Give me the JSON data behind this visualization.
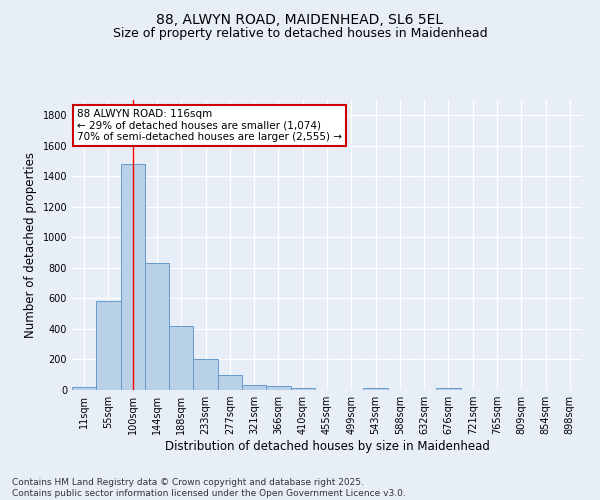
{
  "title": "88, ALWYN ROAD, MAIDENHEAD, SL6 5EL",
  "subtitle": "Size of property relative to detached houses in Maidenhead",
  "xlabel": "Distribution of detached houses by size in Maidenhead",
  "ylabel": "Number of detached properties",
  "bar_labels": [
    "11sqm",
    "55sqm",
    "100sqm",
    "144sqm",
    "188sqm",
    "233sqm",
    "277sqm",
    "321sqm",
    "366sqm",
    "410sqm",
    "455sqm",
    "499sqm",
    "543sqm",
    "588sqm",
    "632sqm",
    "676sqm",
    "721sqm",
    "765sqm",
    "809sqm",
    "854sqm",
    "898sqm"
  ],
  "bar_values": [
    20,
    580,
    1480,
    830,
    420,
    200,
    100,
    35,
    25,
    15,
    0,
    0,
    15,
    0,
    0,
    15,
    0,
    0,
    0,
    0,
    0
  ],
  "bar_color": "#b8d0e8",
  "bar_edge_color": "#6699cc",
  "red_line_x": 2,
  "annotation_line1": "88 ALWYN ROAD: 116sqm",
  "annotation_line2": "← 29% of detached houses are smaller (1,074)",
  "annotation_line3": "70% of semi-detached houses are larger (2,555) →",
  "annotation_box_color": "#ffffff",
  "annotation_box_edge_color": "#cc0000",
  "ylim": [
    0,
    1900
  ],
  "yticks": [
    0,
    200,
    400,
    600,
    800,
    1000,
    1200,
    1400,
    1600,
    1800
  ],
  "footer_text": "Contains HM Land Registry data © Crown copyright and database right 2025.\nContains public sector information licensed under the Open Government Licence v3.0.",
  "bg_color": "#e8eef8",
  "plot_bg_color": "#e8eef8",
  "grid_color": "#ffffff",
  "title_fontsize": 10,
  "subtitle_fontsize": 9,
  "axis_label_fontsize": 8.5,
  "tick_fontsize": 7,
  "footer_fontsize": 6.5,
  "annotation_fontsize": 7.5
}
